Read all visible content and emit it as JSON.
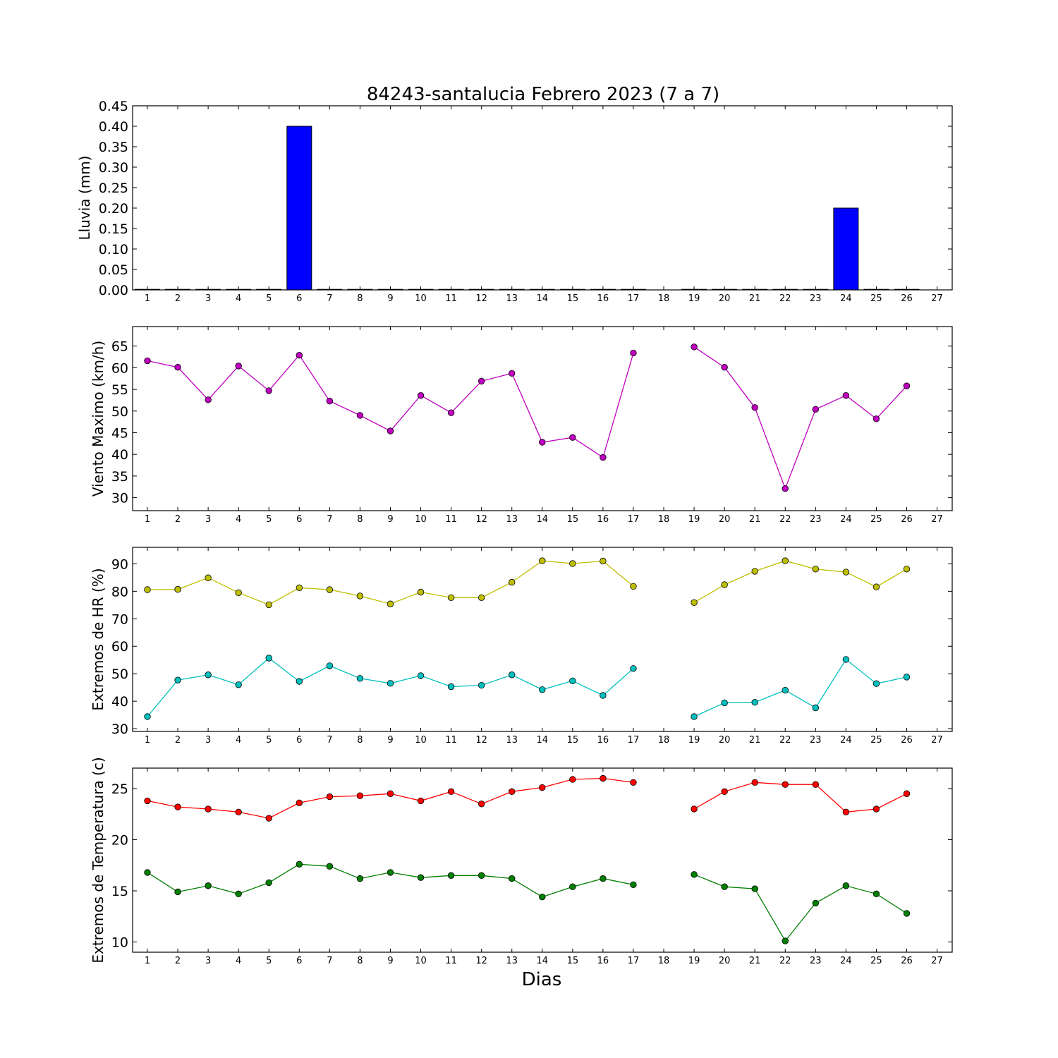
{
  "chart_data": {
    "title": "84243-santalucia Febrero 2023  (7 a 7)",
    "xlabel": "Dias",
    "x_ticks": [
      "1",
      "2",
      "3",
      "4",
      "5",
      "6",
      "7",
      "8",
      "9",
      "10",
      "11",
      "12",
      "13",
      "14",
      "15",
      "16",
      "17",
      "18",
      "19",
      "20",
      "21",
      "22",
      "23",
      "24",
      "25",
      "26",
      "27"
    ],
    "panels": [
      {
        "type": "bar",
        "ylabel": "Lluvia (mm)",
        "ylim": [
          0,
          0.45
        ],
        "yticks": [
          "0.00",
          "0.05",
          "0.10",
          "0.15",
          "0.20",
          "0.25",
          "0.30",
          "0.35",
          "0.40",
          "0.45"
        ],
        "bar_color": "#0000ff",
        "series": [
          {
            "x": [
              1,
              2,
              3,
              4,
              5,
              6,
              7,
              8,
              9,
              10,
              11,
              12,
              13,
              14,
              15,
              16,
              17,
              19,
              20,
              21,
              22,
              23,
              24,
              25,
              26
            ],
            "values": [
              0,
              0,
              0,
              0,
              0,
              0.4,
              0,
              0,
              0,
              0,
              0,
              0,
              0,
              0,
              0,
              0,
              0,
              0,
              0,
              0,
              0,
              0,
              0.2,
              0,
              0
            ]
          }
        ]
      },
      {
        "type": "line",
        "ylabel": "Viento Maximo (km/h)",
        "ylim": [
          27,
          69.5
        ],
        "yticks": [
          "30",
          "35",
          "40",
          "45",
          "50",
          "55",
          "60",
          "65"
        ],
        "series": [
          {
            "color": "#bf00bf",
            "x": [
              1,
              2,
              3,
              4,
              5,
              6,
              7,
              8,
              9,
              10,
              11,
              12,
              13,
              14,
              15,
              16,
              17,
              18,
              19,
              20,
              21,
              22,
              23,
              24,
              25,
              26
            ],
            "values": [
              61.6,
              60.1,
              52.6,
              60.4,
              54.7,
              62.9,
              52.3,
              49.0,
              45.4,
              53.6,
              49.6,
              56.9,
              58.7,
              42.8,
              43.9,
              39.3,
              63.4,
              null,
              64.8,
              60.1,
              50.8,
              32.1,
              50.4,
              53.6,
              48.2,
              55.8
            ]
          }
        ]
      },
      {
        "type": "line",
        "ylabel": "Extremos de HR (%)",
        "ylim": [
          29,
          96
        ],
        "yticks": [
          "30",
          "40",
          "50",
          "60",
          "70",
          "80",
          "90"
        ],
        "series": [
          {
            "color": "#bfbf00",
            "x": [
              1,
              2,
              3,
              4,
              5,
              6,
              7,
              8,
              9,
              10,
              11,
              12,
              13,
              14,
              15,
              16,
              17,
              18,
              19,
              20,
              21,
              22,
              23,
              24,
              25,
              26
            ],
            "values": [
              80.6,
              80.7,
              84.9,
              79.5,
              75.1,
              81.3,
              80.6,
              78.3,
              75.4,
              79.7,
              77.7,
              77.7,
              83.3,
              91.1,
              90.1,
              91.0,
              81.8,
              null,
              75.9,
              82.4,
              87.3,
              91.1,
              88.1,
              87.0,
              81.6,
              88.1
            ]
          },
          {
            "color": "#00bfbf",
            "x": [
              1,
              2,
              3,
              4,
              5,
              6,
              7,
              8,
              9,
              10,
              11,
              12,
              13,
              14,
              15,
              16,
              17,
              18,
              19,
              20,
              21,
              22,
              23,
              24,
              25,
              26
            ],
            "values": [
              34.4,
              47.7,
              49.6,
              46.0,
              55.7,
              47.2,
              52.9,
              48.3,
              46.5,
              49.3,
              45.3,
              45.8,
              49.6,
              44.2,
              47.4,
              42.1,
              51.9,
              null,
              34.4,
              39.4,
              39.6,
              44.0,
              37.6,
              55.2,
              46.4,
              48.8
            ]
          }
        ]
      },
      {
        "type": "line",
        "ylabel": "Extremos de Temperatura (c)",
        "ylim": [
          9,
          27
        ],
        "yticks": [
          "10",
          "15",
          "20",
          "25"
        ],
        "series": [
          {
            "color": "#ff0000",
            "x": [
              1,
              2,
              3,
              4,
              5,
              6,
              7,
              8,
              9,
              10,
              11,
              12,
              13,
              14,
              15,
              16,
              17,
              18,
              19,
              20,
              21,
              22,
              23,
              24,
              25,
              26
            ],
            "values": [
              23.8,
              23.2,
              23.0,
              22.7,
              22.1,
              23.6,
              24.2,
              24.3,
              24.5,
              23.8,
              24.7,
              23.5,
              24.7,
              25.1,
              25.9,
              26.0,
              25.6,
              null,
              23.0,
              24.7,
              25.6,
              25.4,
              25.4,
              22.7,
              23.0,
              24.5
            ]
          },
          {
            "color": "#007f00",
            "x": [
              1,
              2,
              3,
              4,
              5,
              6,
              7,
              8,
              9,
              10,
              11,
              12,
              13,
              14,
              15,
              16,
              17,
              18,
              19,
              20,
              21,
              22,
              23,
              24,
              25,
              26
            ],
            "values": [
              16.8,
              14.9,
              15.5,
              14.7,
              15.8,
              17.6,
              17.4,
              16.2,
              16.8,
              16.3,
              16.5,
              16.5,
              16.2,
              14.4,
              15.4,
              16.2,
              15.6,
              null,
              16.6,
              15.4,
              15.2,
              10.1,
              13.8,
              15.5,
              14.7,
              12.8
            ]
          }
        ]
      }
    ]
  }
}
